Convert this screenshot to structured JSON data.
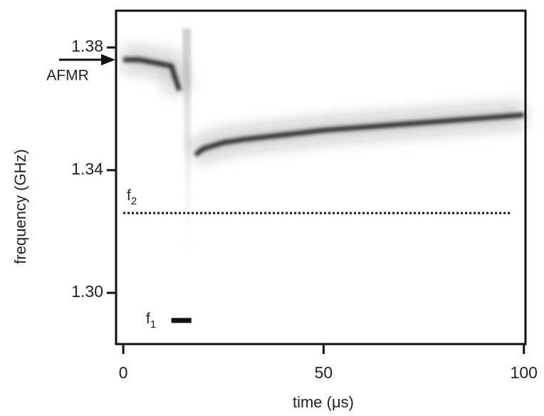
{
  "chart_data": {
    "type": "spectrogram",
    "x_label": "time (μs)",
    "y_label": "frequency (GHz)",
    "xlim": [
      -1.8,
      100.4
    ],
    "ylim": [
      1.2833,
      1.392
    ],
    "xticks": [
      0,
      50,
      100
    ],
    "yticks": [
      1.38,
      1.34,
      {
        "value": 1.3,
        "label": "1.30"
      }
    ],
    "series": [
      {
        "color": "#1a1a1a",
        "x": [
          0,
          4,
          8,
          12,
          13,
          14,
          16,
          18,
          20,
          25,
          30,
          40,
          50,
          60,
          70,
          80,
          90,
          100
        ],
        "values": [
          1.376,
          1.376,
          1.375,
          1.374,
          1.37,
          1.366,
          null,
          1.345,
          1.347,
          1.349,
          1.35,
          1.3515,
          1.353,
          1.354,
          1.355,
          1.356,
          1.357,
          1.358
        ]
      }
    ],
    "afmr": {
      "text": "AFMR",
      "y": 1.376
    },
    "f2": {
      "text": "f",
      "subscript": "2",
      "y": 1.326,
      "x": [
        0,
        97
      ]
    },
    "f1": {
      "text": "f",
      "subscript": "1",
      "y": 1.291,
      "x": [
        12,
        17
      ]
    }
  }
}
